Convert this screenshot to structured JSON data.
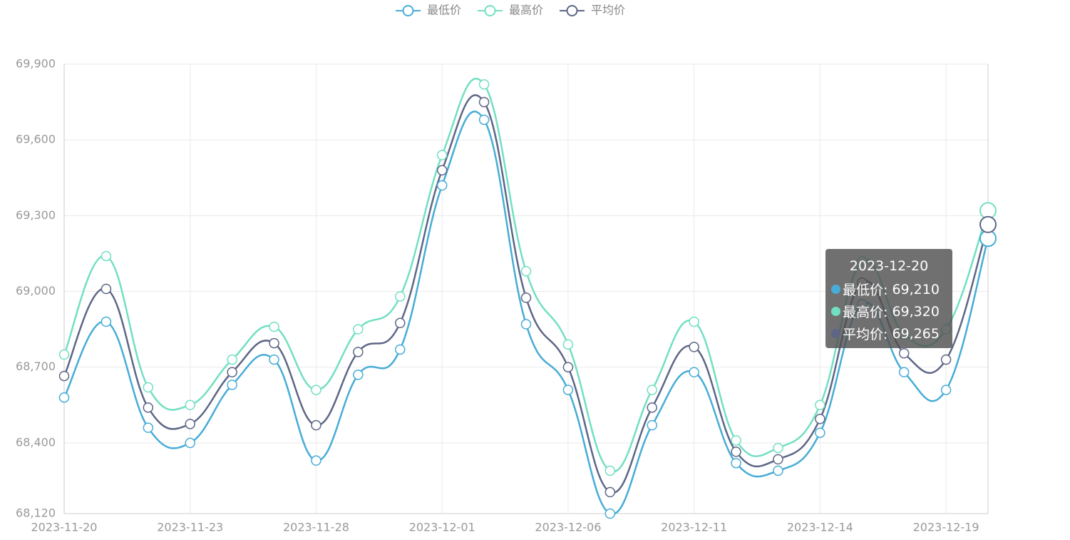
{
  "chart_data": {
    "type": "line",
    "smooth": true,
    "categories": [
      "2023-11-20",
      null,
      null,
      "2023-11-23",
      null,
      null,
      "2023-11-28",
      null,
      null,
      "2023-12-01",
      null,
      null,
      "2023-12-06",
      null,
      null,
      "2023-12-11",
      null,
      null,
      "2023-12-14",
      null,
      null,
      "2023-12-19",
      null
    ],
    "series": [
      {
        "name": "最低价",
        "color": "#47acd6",
        "values": [
          68580,
          68880,
          68460,
          68400,
          68630,
          68730,
          68330,
          68670,
          68770,
          69420,
          69680,
          68870,
          68610,
          68120,
          68470,
          68680,
          68320,
          68290,
          68440,
          68950,
          68680,
          68610,
          69210
        ]
      },
      {
        "name": "最高价",
        "color": "#72dfc2",
        "values": [
          68750,
          69140,
          68620,
          68550,
          68730,
          68860,
          68610,
          68850,
          68980,
          69540,
          69820,
          69080,
          68790,
          68290,
          68610,
          68880,
          68410,
          68380,
          68550,
          69120,
          68830,
          68850,
          69320
        ]
      },
      {
        "name": "平均价",
        "color": "#5e6686",
        "values": [
          68665,
          69010,
          68540,
          68475,
          68680,
          68795,
          68470,
          68760,
          68875,
          69480,
          69750,
          68975,
          68700,
          68205,
          68540,
          68780,
          68365,
          68335,
          68495,
          69035,
          68755,
          68730,
          69265
        ]
      }
    ],
    "ylim": [
      68120,
      69900
    ],
    "yticks": [
      {
        "value": 68120,
        "label": "68,120"
      },
      {
        "value": 68400,
        "label": "68,400"
      },
      {
        "value": 68700,
        "label": "68,700"
      },
      {
        "value": 69000,
        "label": "69,000"
      },
      {
        "value": 69300,
        "label": "69,300"
      },
      {
        "value": 69600,
        "label": "69,600"
      },
      {
        "value": 69900,
        "label": "69,900"
      }
    ],
    "grid": true,
    "legend": "top",
    "tooltip": {
      "x": "2023-12-20",
      "values": [
        {
          "value": 69210,
          "label": "69,210"
        },
        {
          "value": 69320,
          "label": "69,320"
        },
        {
          "value": 69265,
          "label": "69,265"
        }
      ]
    }
  }
}
